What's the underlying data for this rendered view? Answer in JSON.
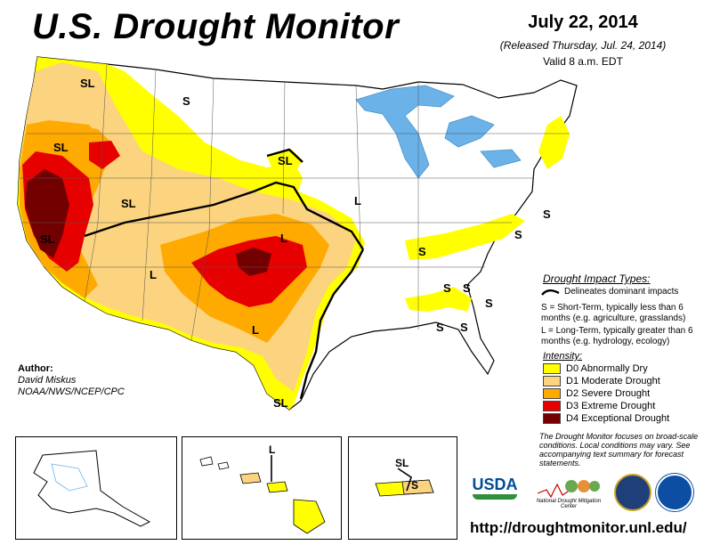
{
  "title": "U.S. Drought Monitor",
  "date": "July 22, 2014",
  "released": "(Released Thursday, Jul. 24, 2014)",
  "valid": "Valid 8 a.m. EDT",
  "author": {
    "heading": "Author:",
    "name": "David Miskus",
    "org": "NOAA/NWS/NCEP/CPC"
  },
  "impact_types": {
    "title": "Drought Impact Types:",
    "delineates": "Delineates dominant impacts",
    "short_term": "S = Short-Term, typically less than 6 months (e.g. agriculture, grasslands)",
    "long_term": "L = Long-Term, typically greater than 6 months (e.g. hydrology, ecology)"
  },
  "intensity": {
    "title": "Intensity:",
    "levels": [
      {
        "label": "D0 Abnormally Dry",
        "color": "#ffff00"
      },
      {
        "label": "D1 Moderate Drought",
        "color": "#fcd37f"
      },
      {
        "label": "D2 Severe Drought",
        "color": "#ffaa00"
      },
      {
        "label": "D3 Extreme Drought",
        "color": "#e60000"
      },
      {
        "label": "D4 Exceptional Drought",
        "color": "#730000"
      }
    ]
  },
  "note": "The Drought Monitor focuses on broad-scale conditions. Local conditions may vary. See accompanying text summary for forecast statements.",
  "map_labels": {
    "sl_oregon": "SL",
    "s_montana": "S",
    "sl_nevada": "SL",
    "sl_utah": "SL",
    "sl_nebraska": "SL",
    "l_iowa": "L",
    "sl_california": "SL",
    "l_kansas": "L",
    "l_arizona": "L",
    "l_texas": "L",
    "sl_texas": "SL",
    "s_kentucky": "S",
    "s_virginia": "S",
    "s_newengland": "S",
    "s_carolina1": "S",
    "s_carolina2": "S",
    "s_carolina3": "S",
    "s_georgia": "S",
    "s_florida": "S",
    "l_hawaii": "L",
    "sl_pr": "SL",
    "s_pr": "S"
  },
  "logos": {
    "usda": "USDA",
    "ndmc": "National Drought Mitigation Center"
  },
  "url": "http://droughtmonitor.unl.edu/"
}
